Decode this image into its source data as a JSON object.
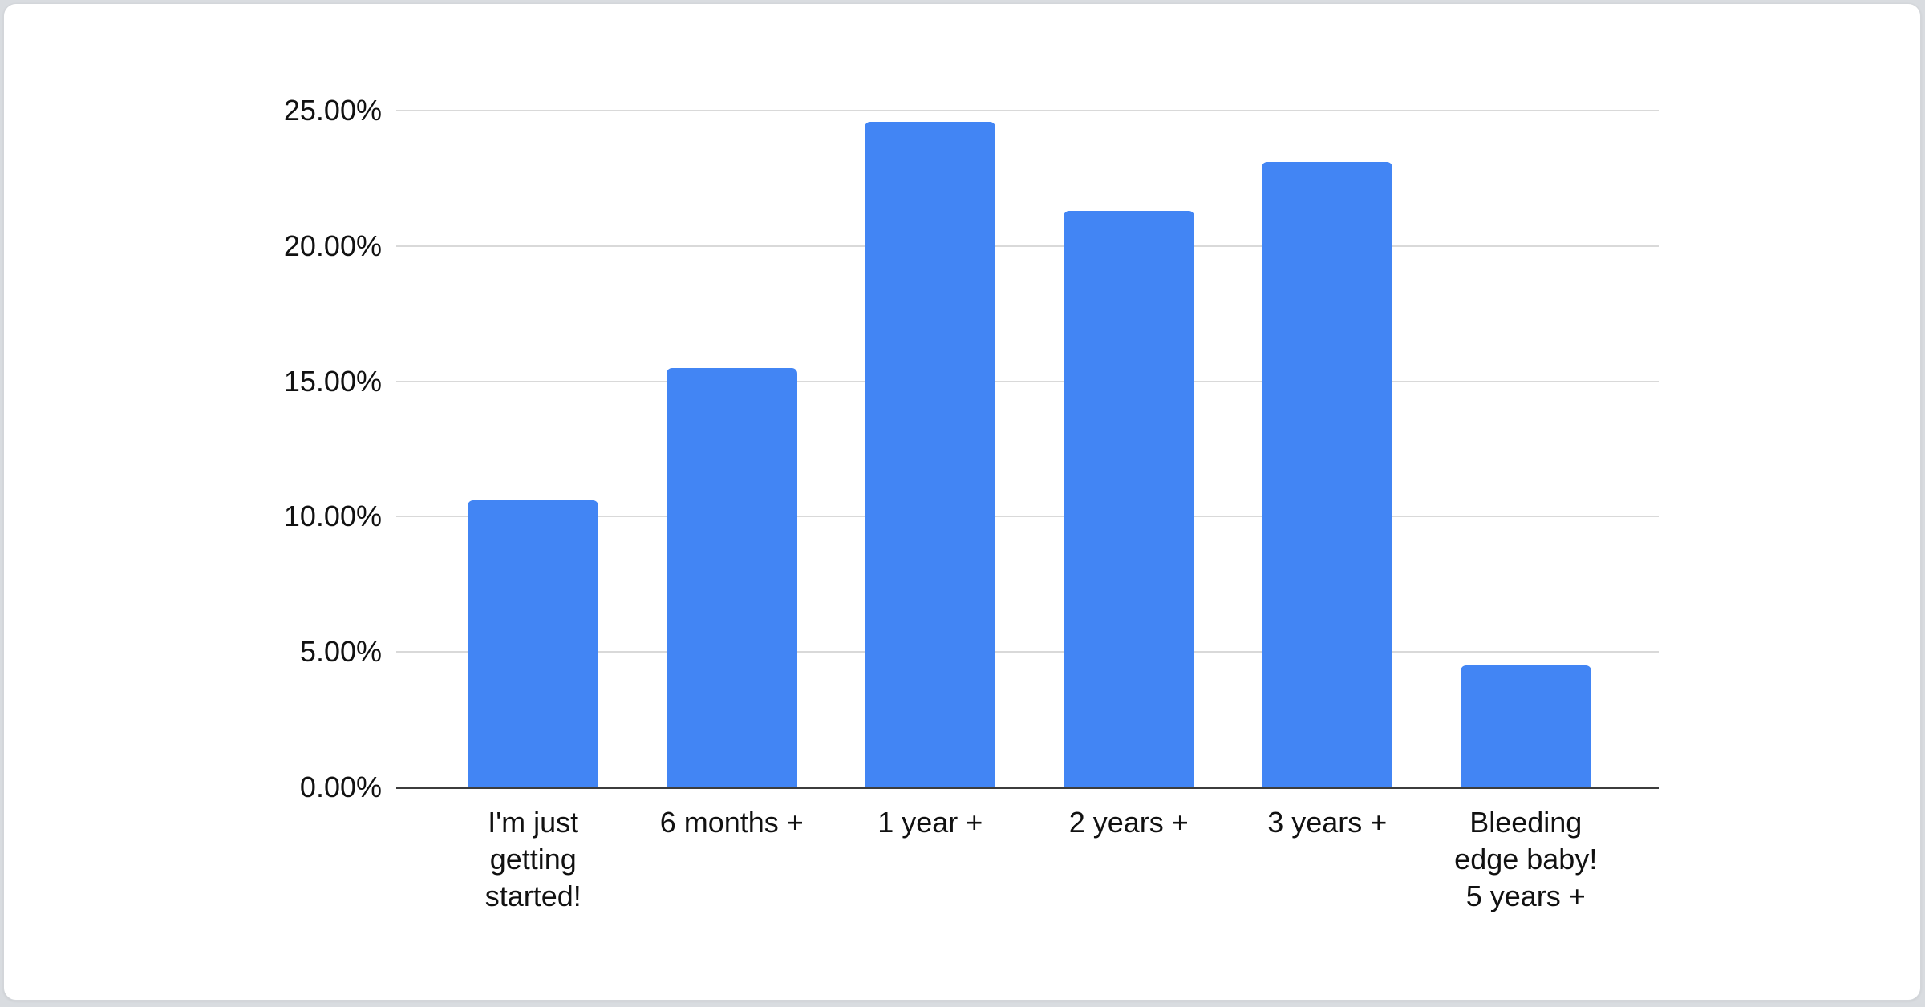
{
  "chart_data": {
    "type": "bar",
    "title": "",
    "xlabel": "",
    "ylabel": "",
    "categories": [
      "I'm just getting started!",
      "6 months +",
      "1 year +",
      "2 years +",
      "3 years +",
      "Bleeding edge baby! 5 years +"
    ],
    "category_lines": [
      [
        "I'm just",
        "getting",
        "started!"
      ],
      [
        "6 months +"
      ],
      [
        "1 year +"
      ],
      [
        "2 years +"
      ],
      [
        "3 years +"
      ],
      [
        "Bleeding",
        "edge baby!",
        "5 years +"
      ]
    ],
    "values": [
      10.6,
      15.5,
      24.6,
      21.3,
      23.1,
      4.5
    ],
    "unit": "%",
    "ylim": [
      0,
      25
    ],
    "ytick_step": 5,
    "ytick_labels": [
      "0.00%",
      "5.00%",
      "10.00%",
      "15.00%",
      "20.00%",
      "25.00%"
    ],
    "grid": true,
    "legend": "none",
    "colors": {
      "bar": "#4285F4",
      "gridline": "#d9d9d9",
      "axis_line": "#3c3c3c",
      "tick_text": "#111111",
      "label_text": "#111111",
      "card_background": "#ffffff",
      "page_background": "#d9dce0",
      "card_border": "#d3d6da"
    }
  }
}
